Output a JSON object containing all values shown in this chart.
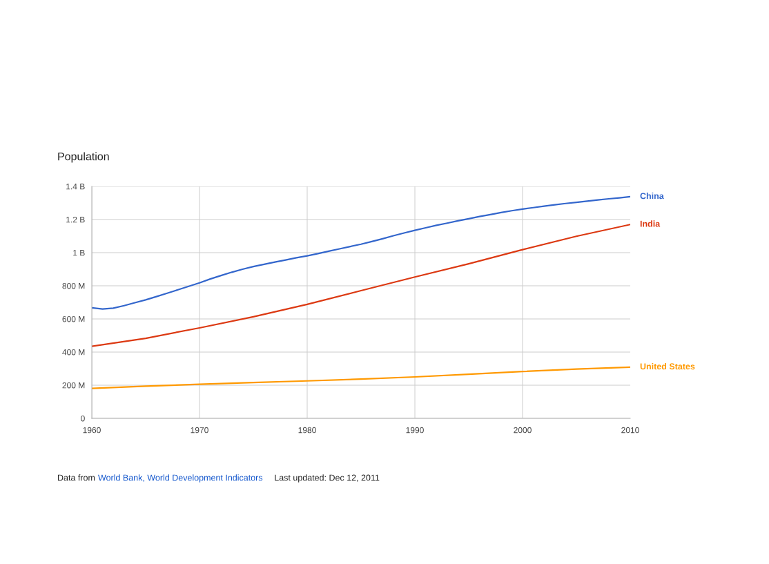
{
  "chart_data": {
    "type": "line",
    "title": "Population",
    "x": [
      1960,
      1961,
      1962,
      1963,
      1964,
      1965,
      1966,
      1967,
      1968,
      1969,
      1970,
      1971,
      1972,
      1973,
      1974,
      1975,
      1976,
      1977,
      1978,
      1979,
      1980,
      1981,
      1982,
      1983,
      1984,
      1985,
      1986,
      1987,
      1988,
      1989,
      1990,
      1991,
      1992,
      1993,
      1994,
      1995,
      1996,
      1997,
      1998,
      1999,
      2000,
      2001,
      2002,
      2003,
      2004,
      2005,
      2006,
      2007,
      2008,
      2009,
      2010
    ],
    "series": [
      {
        "name": "China",
        "color": "#3366cc",
        "values": [
          667000000,
          660000000,
          665000000,
          680000000,
          698000000,
          715000000,
          735000000,
          755000000,
          776000000,
          797000000,
          818000000,
          841000000,
          862000000,
          882000000,
          900000000,
          916000000,
          930000000,
          943000000,
          956000000,
          969000000,
          981000000,
          994000000,
          1009000000,
          1023000000,
          1037000000,
          1051000000,
          1067000000,
          1084000000,
          1102000000,
          1119000000,
          1135000000,
          1150000000,
          1165000000,
          1178000000,
          1192000000,
          1205000000,
          1218000000,
          1230000000,
          1242000000,
          1253000000,
          1263000000,
          1272000000,
          1281000000,
          1289000000,
          1297000000,
          1304000000,
          1311000000,
          1318000000,
          1325000000,
          1331000000,
          1338000000
        ]
      },
      {
        "name": "India",
        "color": "#dc3912",
        "x": [
          1960,
          1965,
          1970,
          1975,
          1980,
          1985,
          1990,
          1995,
          2000,
          2005,
          2010
        ],
        "values": [
          435000000,
          483000000,
          546000000,
          613000000,
          688000000,
          771000000,
          853000000,
          933000000,
          1018000000,
          1099000000,
          1170000000
        ]
      },
      {
        "name": "United States",
        "color": "#ff9900",
        "x": [
          1960,
          1965,
          1970,
          1975,
          1980,
          1985,
          1990,
          1995,
          2000,
          2005,
          2010
        ],
        "values": [
          181000000,
          194000000,
          206000000,
          216000000,
          226000000,
          237000000,
          250000000,
          266000000,
          283000000,
          297000000,
          309000000
        ]
      }
    ],
    "xlim": [
      1960,
      2010
    ],
    "xticks": [
      1960,
      1970,
      1980,
      1990,
      2000,
      2010
    ],
    "ylim": [
      0,
      1400000000
    ],
    "yticks": [
      0,
      {
        "value": 200000000,
        "label": "200 M"
      },
      {
        "value": 400000000,
        "label": "400 M"
      },
      {
        "value": 600000000,
        "label": "600 M"
      },
      {
        "value": 800000000,
        "label": "800 M"
      },
      {
        "value": 1000000000,
        "label": "1 B"
      },
      {
        "value": 1200000000,
        "label": "1.2 B"
      },
      {
        "value": 1400000000,
        "label": "1.4 B"
      }
    ],
    "grid": true,
    "line_style": "solid",
    "annotations": [
      "Data from",
      "World Bank, World Development Indicators",
      "Last updated: Dec 12, 2011"
    ]
  }
}
